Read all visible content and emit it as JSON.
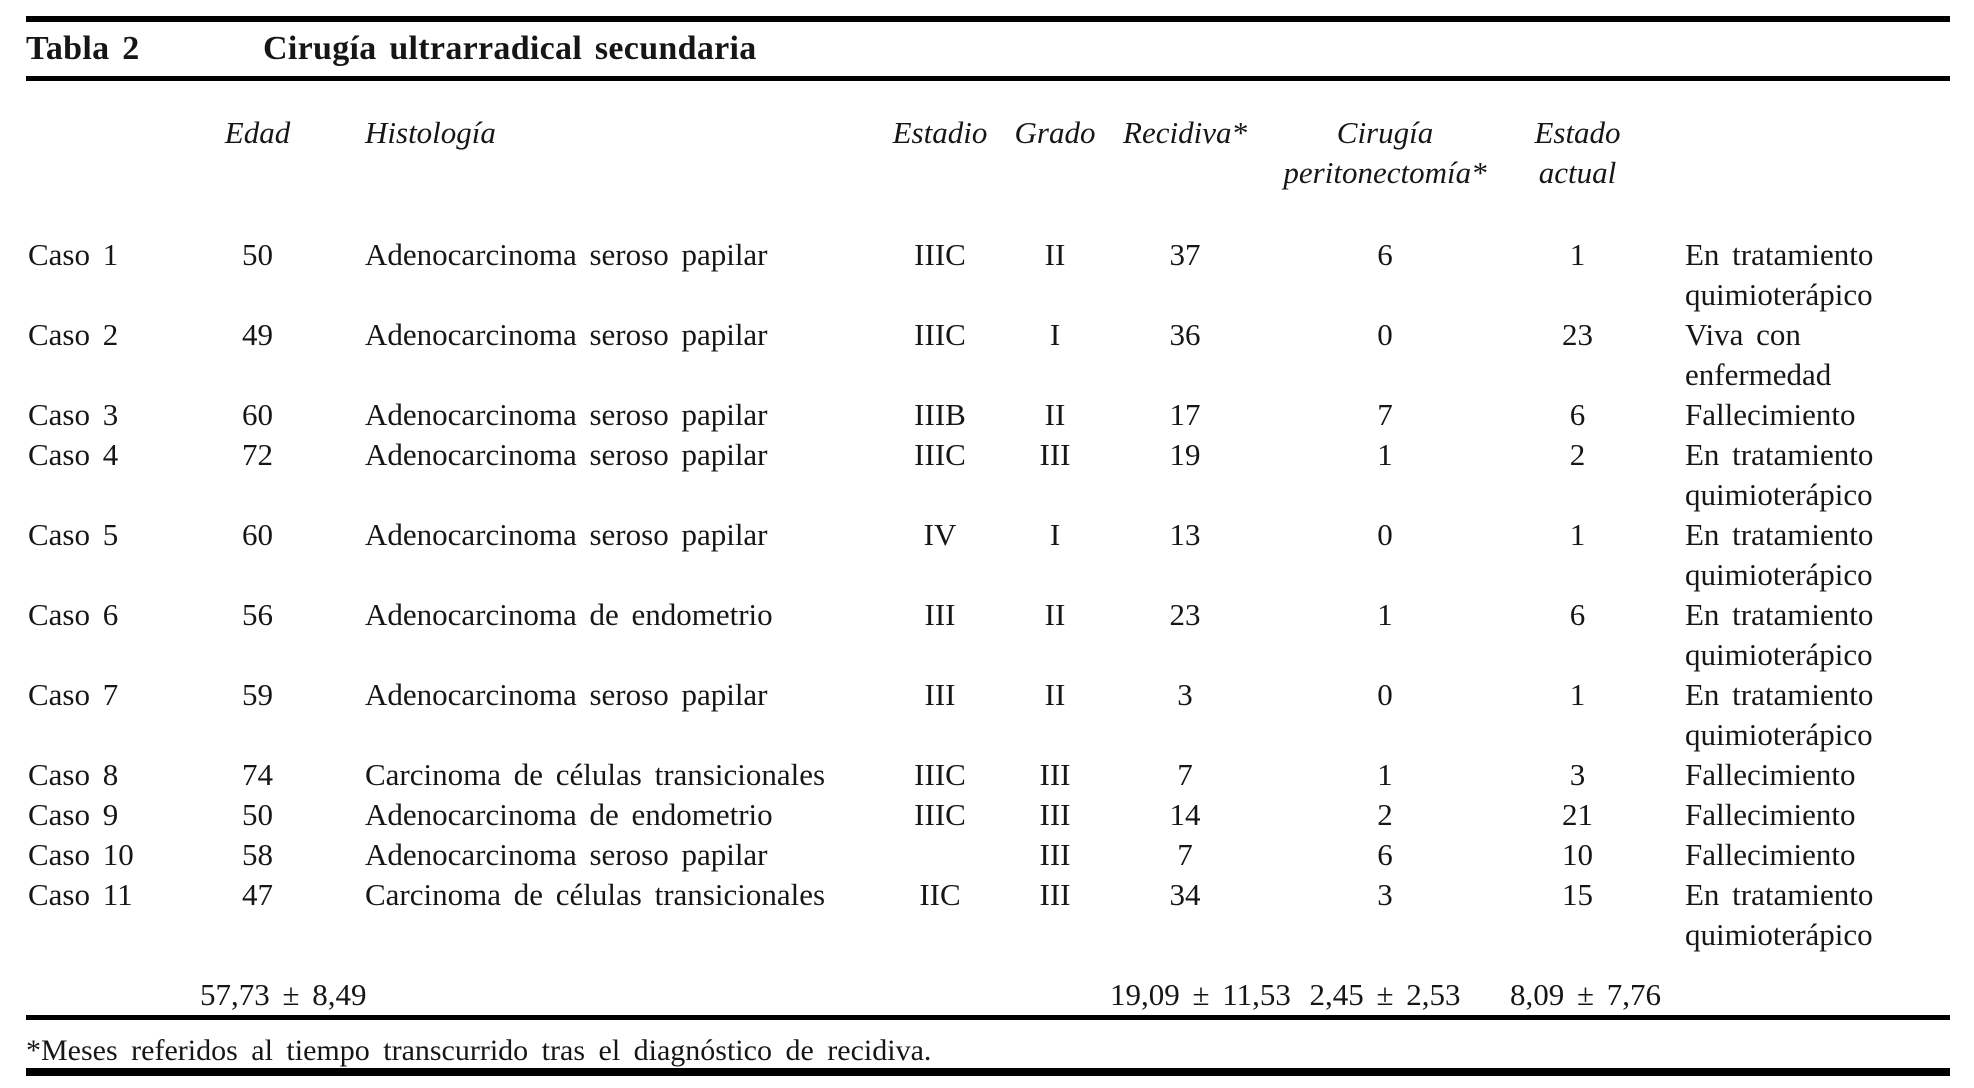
{
  "header": {
    "label": "Tabla 2",
    "title": "Cirugía ultrarradical secundaria"
  },
  "columns": {
    "edad": "Edad",
    "histologia": "Histología",
    "estadio": "Estadio",
    "grado": "Grado",
    "recidiva": "Recidiva*",
    "cirugia": {
      "line1": "Cirugía",
      "line2": "peritonectomía*"
    },
    "estado": {
      "line1": "Estado",
      "line2": "actual"
    }
  },
  "rows": [
    {
      "caso": "Caso 1",
      "edad": "50",
      "histologia": "Adenocarcinoma seroso papilar",
      "estadio": "IIIC",
      "grado": "II",
      "recidiva": "37",
      "cirugia": "6",
      "estado_num": "1",
      "estado_l1": "En tratamiento",
      "estado_l2": "quimioterápico"
    },
    {
      "caso": "Caso 2",
      "edad": "49",
      "histologia": "Adenocarcinoma seroso papilar",
      "estadio": "IIIC",
      "grado": "I",
      "recidiva": "36",
      "cirugia": "0",
      "estado_num": "23",
      "estado_l1": "Viva con",
      "estado_l2": "enfermedad"
    },
    {
      "caso": "Caso 3",
      "edad": "60",
      "histologia": "Adenocarcinoma seroso papilar",
      "estadio": "IIIB",
      "grado": "II",
      "recidiva": "17",
      "cirugia": "7",
      "estado_num": "6",
      "estado_l1": "Fallecimiento",
      "estado_l2": ""
    },
    {
      "caso": "Caso 4",
      "edad": "72",
      "histologia": "Adenocarcinoma seroso papilar",
      "estadio": "IIIC",
      "grado": "III",
      "recidiva": "19",
      "cirugia": "1",
      "estado_num": "2",
      "estado_l1": "En tratamiento",
      "estado_l2": "quimioterápico"
    },
    {
      "caso": "Caso 5",
      "edad": "60",
      "histologia": "Adenocarcinoma seroso papilar",
      "estadio": "IV",
      "grado": "I",
      "recidiva": "13",
      "cirugia": "0",
      "estado_num": "1",
      "estado_l1": "En tratamiento",
      "estado_l2": "quimioterápico"
    },
    {
      "caso": "Caso 6",
      "edad": "56",
      "histologia": "Adenocarcinoma de endometrio",
      "estadio": "III",
      "grado": "II",
      "recidiva": "23",
      "cirugia": "1",
      "estado_num": "6",
      "estado_l1": "En tratamiento",
      "estado_l2": "quimioterápico"
    },
    {
      "caso": "Caso 7",
      "edad": "59",
      "histologia": "Adenocarcinoma seroso papilar",
      "estadio": "III",
      "grado": "II",
      "recidiva": "3",
      "cirugia": "0",
      "estado_num": "1",
      "estado_l1": "En tratamiento",
      "estado_l2": "quimioterápico"
    },
    {
      "caso": "Caso 8",
      "edad": "74",
      "histologia": "Carcinoma de células transicionales",
      "estadio": "IIIC",
      "grado": "III",
      "recidiva": "7",
      "cirugia": "1",
      "estado_num": "3",
      "estado_l1": "Fallecimiento",
      "estado_l2": ""
    },
    {
      "caso": "Caso 9",
      "edad": "50",
      "histologia": "Adenocarcinoma de endometrio",
      "estadio": "IIIC",
      "grado": "III",
      "recidiva": "14",
      "cirugia": "2",
      "estado_num": "21",
      "estado_l1": "Fallecimiento",
      "estado_l2": ""
    },
    {
      "caso": "Caso 10",
      "edad": "58",
      "histologia": "Adenocarcinoma seroso papilar",
      "estadio": "",
      "grado": "III",
      "recidiva": "7",
      "cirugia": "6",
      "estado_num": "10",
      "estado_l1": "Fallecimiento",
      "estado_l2": ""
    },
    {
      "caso": "Caso 11",
      "edad": "47",
      "histologia": "Carcinoma de células transicionales",
      "estadio": "IIC",
      "grado": "III",
      "recidiva": "34",
      "cirugia": "3",
      "estado_num": "15",
      "estado_l1": "En tratamiento",
      "estado_l2": "quimioterápico"
    }
  ],
  "summary": {
    "edad": "57,73 ± 8,49",
    "recidiva": "19,09 ± 11,53",
    "cirugia": "2,45 ± 2,53",
    "estado": "8,09 ± 7,76"
  },
  "footnote": "*Meses referidos al tiempo transcurrido tras el diagnóstico de recidiva."
}
